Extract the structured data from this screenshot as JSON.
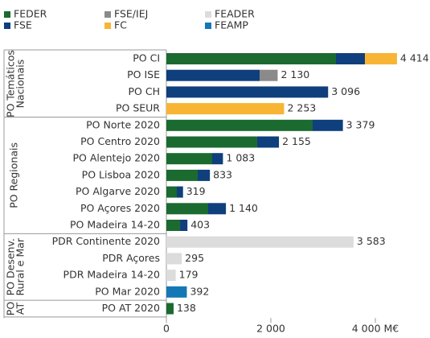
{
  "chart_data": {
    "type": "stacked_barh",
    "categories": [
      "PO CI",
      "PO ISE",
      "PO CH",
      "PO SEUR",
      "PO Norte 2020",
      "PO Centro 2020",
      "PO Alentejo 2020",
      "PO Lisboa 2020",
      "PO Algarve 2020",
      "PO Açores 2020",
      "PO Madeira 14-20",
      "PDR Continente 2020",
      "PDR Açores",
      "PDR Madeira 14-20",
      "PO Mar 2020",
      "PO AT 2020"
    ],
    "groups": [
      {
        "label": [
          "PO Temáticos",
          "Nacionais"
        ],
        "start": 0,
        "end": 3
      },
      {
        "label": [
          "PO Regionais"
        ],
        "start": 4,
        "end": 10
      },
      {
        "label": [
          "PO Desenv.",
          "Rural e Mar"
        ],
        "start": 11,
        "end": 14
      },
      {
        "label": [
          "PO",
          "AT"
        ],
        "start": 15,
        "end": 15
      }
    ],
    "series": [
      {
        "name": "FEDER",
        "color": "#1b6a30",
        "values": [
          3246,
          null,
          null,
          null,
          2800,
          1738,
          877,
          600,
          200,
          800,
          262,
          null,
          null,
          null,
          null,
          138
        ]
      },
      {
        "name": "FSE",
        "color": "#0f3f7c",
        "values": [
          554,
          1785,
          3096,
          null,
          579,
          417,
          206,
          233,
          119,
          340,
          141,
          null,
          null,
          null,
          null,
          null
        ]
      },
      {
        "name": "FSE/IEJ",
        "color": "#8a8a8a",
        "values": [
          null,
          345,
          null,
          null,
          null,
          null,
          null,
          null,
          null,
          null,
          null,
          null,
          null,
          null,
          null,
          null
        ]
      },
      {
        "name": "FC",
        "color": "#f8b434",
        "values": [
          614,
          null,
          null,
          2253,
          null,
          null,
          null,
          null,
          null,
          null,
          null,
          null,
          null,
          null,
          null,
          null
        ]
      },
      {
        "name": "FEADER",
        "color": "#dcdcdc",
        "values": [
          null,
          null,
          null,
          null,
          null,
          null,
          null,
          null,
          null,
          null,
          null,
          3583,
          295,
          179,
          null,
          null
        ]
      },
      {
        "name": "FEAMP",
        "color": "#1677b5",
        "values": [
          null,
          null,
          null,
          null,
          null,
          null,
          null,
          null,
          null,
          null,
          null,
          null,
          null,
          null,
          392,
          null
        ]
      }
    ],
    "totals": [
      4414,
      2130,
      3096,
      2253,
      3379,
      2155,
      1083,
      833,
      319,
      1140,
      403,
      3583,
      295,
      179,
      392,
      138
    ],
    "total_labels": [
      "4 414",
      "2 130",
      "3 096",
      "2 253",
      "3 379",
      "2 155",
      "1 083",
      "833",
      "319",
      "1 140",
      "403",
      "3 583",
      "295",
      "179",
      "392",
      "138"
    ],
    "xlim": [
      0,
      4600
    ],
    "xticks": [
      0,
      {
        "value": 2000,
        "label": "2 000"
      },
      {
        "value": 4000,
        "label": "4 000 M€"
      }
    ]
  }
}
